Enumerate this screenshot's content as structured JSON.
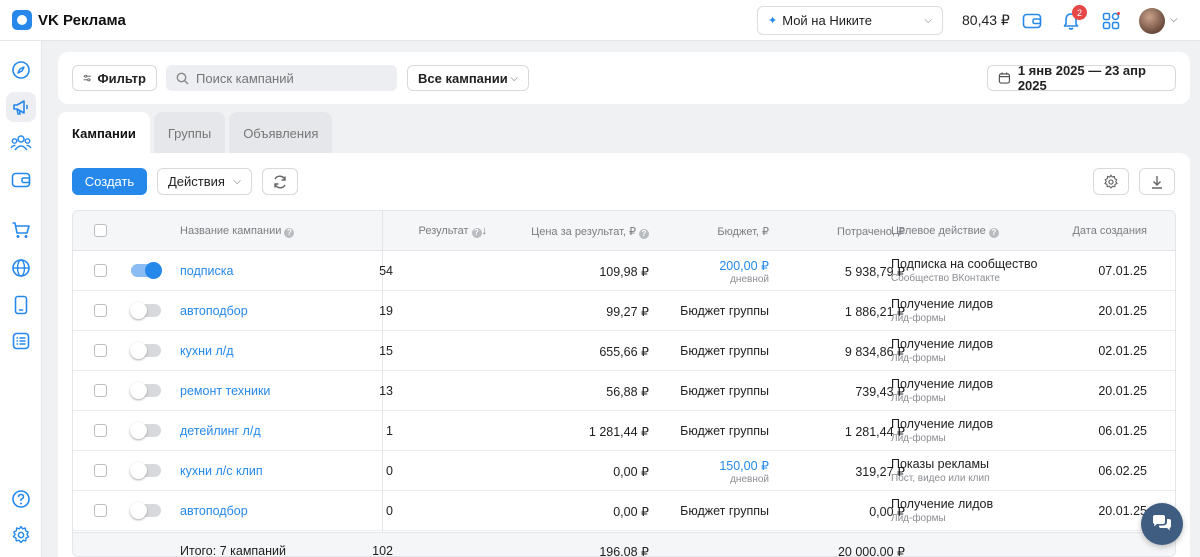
{
  "header": {
    "app_title": "VK Реклама",
    "account_name": "Мой на Никите",
    "balance": "80,43 ₽",
    "notifications_count": "2"
  },
  "sidebar": {
    "items": [
      "navigator-icon",
      "campaigns-megaphone-icon",
      "audiences-icon",
      "wallet-icon",
      "store-cart-icon",
      "sites-globe-icon",
      "mobile-apps-icon",
      "lead-forms-icon",
      "help-icon",
      "settings-icon"
    ],
    "active_item": "campaigns-megaphone-icon"
  },
  "filterbar": {
    "filter_label": "Фильтр",
    "search_placeholder": "Поиск кампаний",
    "scope_select": "Все кампании",
    "date_range": "1 янв 2025 — 23 апр 2025"
  },
  "tabs": [
    {
      "label": "Кампании",
      "active": true
    },
    {
      "label": "Группы",
      "active": false
    },
    {
      "label": "Объявления",
      "active": false
    }
  ],
  "toolbar": {
    "create_label": "Создать",
    "actions_label": "Действия"
  },
  "table": {
    "columns": {
      "name": "Название кампании",
      "result": "Результат",
      "price": "Цена за результат, ₽",
      "budget": "Бюджет, ₽",
      "spent": "Потрачено, ₽",
      "target": "Целевое действие",
      "created": "Дата создания"
    },
    "rows": [
      {
        "enabled": true,
        "name": "подписка",
        "result": "54",
        "price": "109,98 ₽",
        "budget": "200,00 ₽",
        "budget_sub": "дневной",
        "spent": "5 938,79 ₽",
        "target": "Подписка на сообщество",
        "target_sub": "Сообщество ВКонтакте",
        "created": "07.01.25"
      },
      {
        "enabled": false,
        "name": "автоподбор",
        "result": "19",
        "price": "99,27 ₽",
        "budget": "Бюджет группы",
        "budget_sub": "",
        "spent": "1 886,21 ₽",
        "target": "Получение лидов",
        "target_sub": "Лид-формы",
        "created": "20.01.25"
      },
      {
        "enabled": false,
        "name": "кухни л/д",
        "result": "15",
        "price": "655,66 ₽",
        "budget": "Бюджет группы",
        "budget_sub": "",
        "spent": "9 834,86 ₽",
        "target": "Получение лидов",
        "target_sub": "Лид-формы",
        "created": "02.01.25"
      },
      {
        "enabled": false,
        "name": "ремонт техники",
        "result": "13",
        "price": "56,88 ₽",
        "budget": "Бюджет группы",
        "budget_sub": "",
        "spent": "739,43 ₽",
        "target": "Получение лидов",
        "target_sub": "Лид-формы",
        "created": "20.01.25"
      },
      {
        "enabled": false,
        "name": "детейлинг л/д",
        "result": "1",
        "price": "1 281,44 ₽",
        "budget": "Бюджет группы",
        "budget_sub": "",
        "spent": "1 281,44 ₽",
        "target": "Получение лидов",
        "target_sub": "Лид-формы",
        "created": "06.01.25"
      },
      {
        "enabled": false,
        "name": "кухни л/с клип",
        "result": "0",
        "price": "0,00 ₽",
        "budget": "150,00 ₽",
        "budget_sub": "дневной",
        "spent": "319,27 ₽",
        "target": "Показы рекламы",
        "target_sub": "Пост, видео или клип",
        "created": "06.02.25"
      },
      {
        "enabled": false,
        "name": "автоподбор",
        "result": "0",
        "price": "0,00 ₽",
        "budget": "Бюджет группы",
        "budget_sub": "",
        "spent": "0,00 ₽",
        "target": "Получение лидов",
        "target_sub": "Лид-формы",
        "created": "20.01.25"
      }
    ],
    "totals": {
      "label": "Итого: 7 кампаний",
      "result": "102",
      "price": "196,08 ₽",
      "spent": "20 000,00 ₽"
    }
  }
}
